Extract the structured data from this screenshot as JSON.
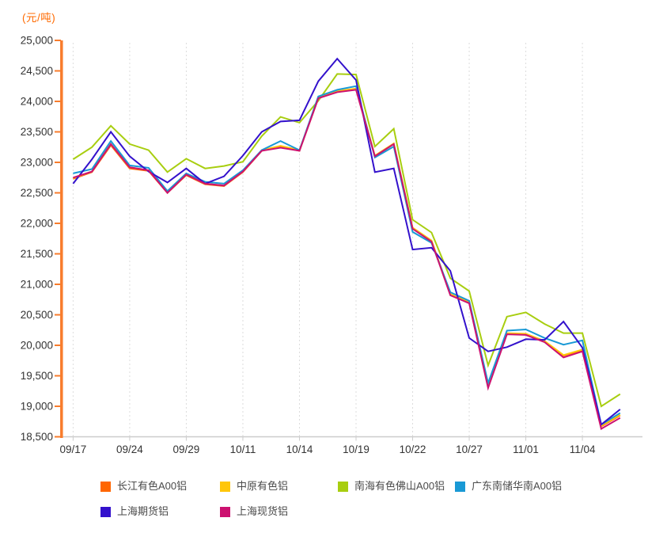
{
  "page": {
    "background": "#FFFFFF"
  },
  "chart_data": {
    "type": "line",
    "title": "(元/吨)",
    "title_color": "#FF6A00",
    "axis_color": "#F87C2C",
    "grid_color": "#DCDCDC",
    "x_axis_color": "#CCCCCC",
    "text_color": "#333333",
    "ylim": [
      18500,
      25000
    ],
    "y_step": 500,
    "y_tick_labels": [
      "25,000",
      "24,500",
      "24,000",
      "23,500",
      "23,000",
      "22,500",
      "22,000",
      "21,500",
      "21,000",
      "20,500",
      "20,000",
      "19,500",
      "19,000",
      "18,500"
    ],
    "x_tick_labels": [
      "09/17",
      "09/24",
      "09/29",
      "10/11",
      "10/14",
      "10/19",
      "10/22",
      "10/27",
      "11/01",
      "11/04"
    ],
    "x_tick_point_indices": [
      0,
      3,
      6,
      9,
      12,
      15,
      18,
      21,
      24,
      27
    ],
    "n_points": 30,
    "grid": "vertical dashed lines at labeled ticks only",
    "legend_position": "bottom",
    "series": [
      {
        "name": "长江有色A00铝",
        "color": "#FF6600",
        "values": [
          22730,
          22840,
          23280,
          22900,
          22860,
          22500,
          22790,
          22640,
          22610,
          22840,
          23190,
          23260,
          23190,
          24050,
          24160,
          24200,
          23100,
          23300,
          21920,
          21710,
          20830,
          20700,
          19330,
          20190,
          20180,
          20060,
          19830,
          19920,
          18670,
          18850
        ]
      },
      {
        "name": "中原有色铝",
        "color": "#FFC60A",
        "values": [
          22740,
          22850,
          23300,
          22920,
          22870,
          22510,
          22800,
          22650,
          22620,
          22850,
          23200,
          23270,
          23200,
          24060,
          24170,
          24210,
          23110,
          23310,
          21930,
          21720,
          20840,
          20710,
          19350,
          20200,
          20190,
          20070,
          19840,
          19930,
          18680,
          18860
        ]
      },
      {
        "name": "南海有色佛山A00铝",
        "color": "#A8CE10",
        "values": [
          23050,
          23250,
          23600,
          23300,
          23200,
          22840,
          23060,
          22900,
          22940,
          23010,
          23430,
          23745,
          23650,
          24010,
          24450,
          24440,
          23260,
          23550,
          22060,
          21850,
          21100,
          20890,
          19670,
          20470,
          20540,
          20350,
          20200,
          20200,
          19000,
          19200
        ]
      },
      {
        "name": "广东南储华南A00铝",
        "color": "#1999D5",
        "values": [
          22820,
          22890,
          23350,
          22950,
          22910,
          22530,
          22820,
          22680,
          22650,
          22870,
          23200,
          23350,
          23200,
          24080,
          24190,
          24250,
          23080,
          23260,
          21860,
          21680,
          20870,
          20730,
          19380,
          20240,
          20260,
          20120,
          20010,
          20080,
          18700,
          18890
        ]
      },
      {
        "name": "上海期货铝",
        "color": "#3311CC",
        "values": [
          22650,
          23050,
          23500,
          23100,
          22850,
          22670,
          22900,
          22650,
          22770,
          23110,
          23500,
          23670,
          23690,
          24330,
          24700,
          24350,
          22840,
          22900,
          21570,
          21600,
          21220,
          20120,
          19900,
          19970,
          20100,
          20090,
          20390,
          19960,
          18700,
          18950
        ]
      },
      {
        "name": "上海现货铝",
        "color": "#CC1170",
        "values": [
          22750,
          22850,
          23300,
          22920,
          22870,
          22500,
          22800,
          22650,
          22620,
          22850,
          23190,
          23240,
          23190,
          24050,
          24150,
          24190,
          23100,
          23300,
          21910,
          21700,
          20820,
          20690,
          19300,
          20180,
          20170,
          20050,
          19800,
          19900,
          18630,
          18810
        ]
      }
    ]
  }
}
